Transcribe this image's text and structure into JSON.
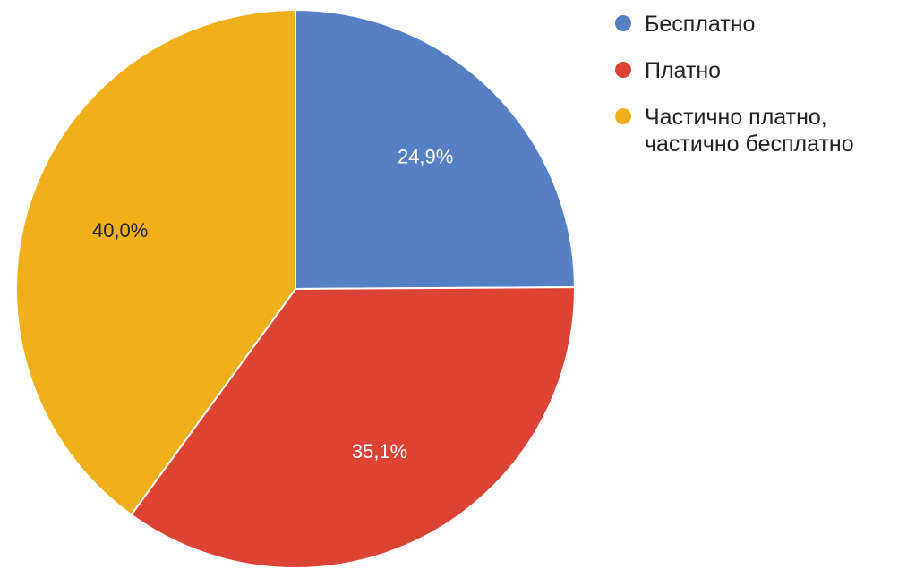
{
  "chart_data": {
    "type": "pie",
    "categories": [
      "Бесплатно",
      "Платно",
      "Частично платно, частично бесплатно"
    ],
    "values": [
      24.9,
      35.1,
      40.0
    ],
    "labels": [
      "24,9%",
      "35,1%",
      "40,0%"
    ],
    "colors": [
      "#5680c4",
      "#dc4335",
      "#f0b01b"
    ],
    "label_colors": [
      "#ffffff",
      "#ffffff",
      "#222222"
    ],
    "start_angle_deg": 0,
    "direction": "clockwise",
    "legend": {
      "placement": "right",
      "entries": [
        [
          "Бесплатно"
        ],
        [
          "Платно"
        ],
        [
          "Частично платно,",
          "частично бесплатно"
        ]
      ]
    }
  }
}
